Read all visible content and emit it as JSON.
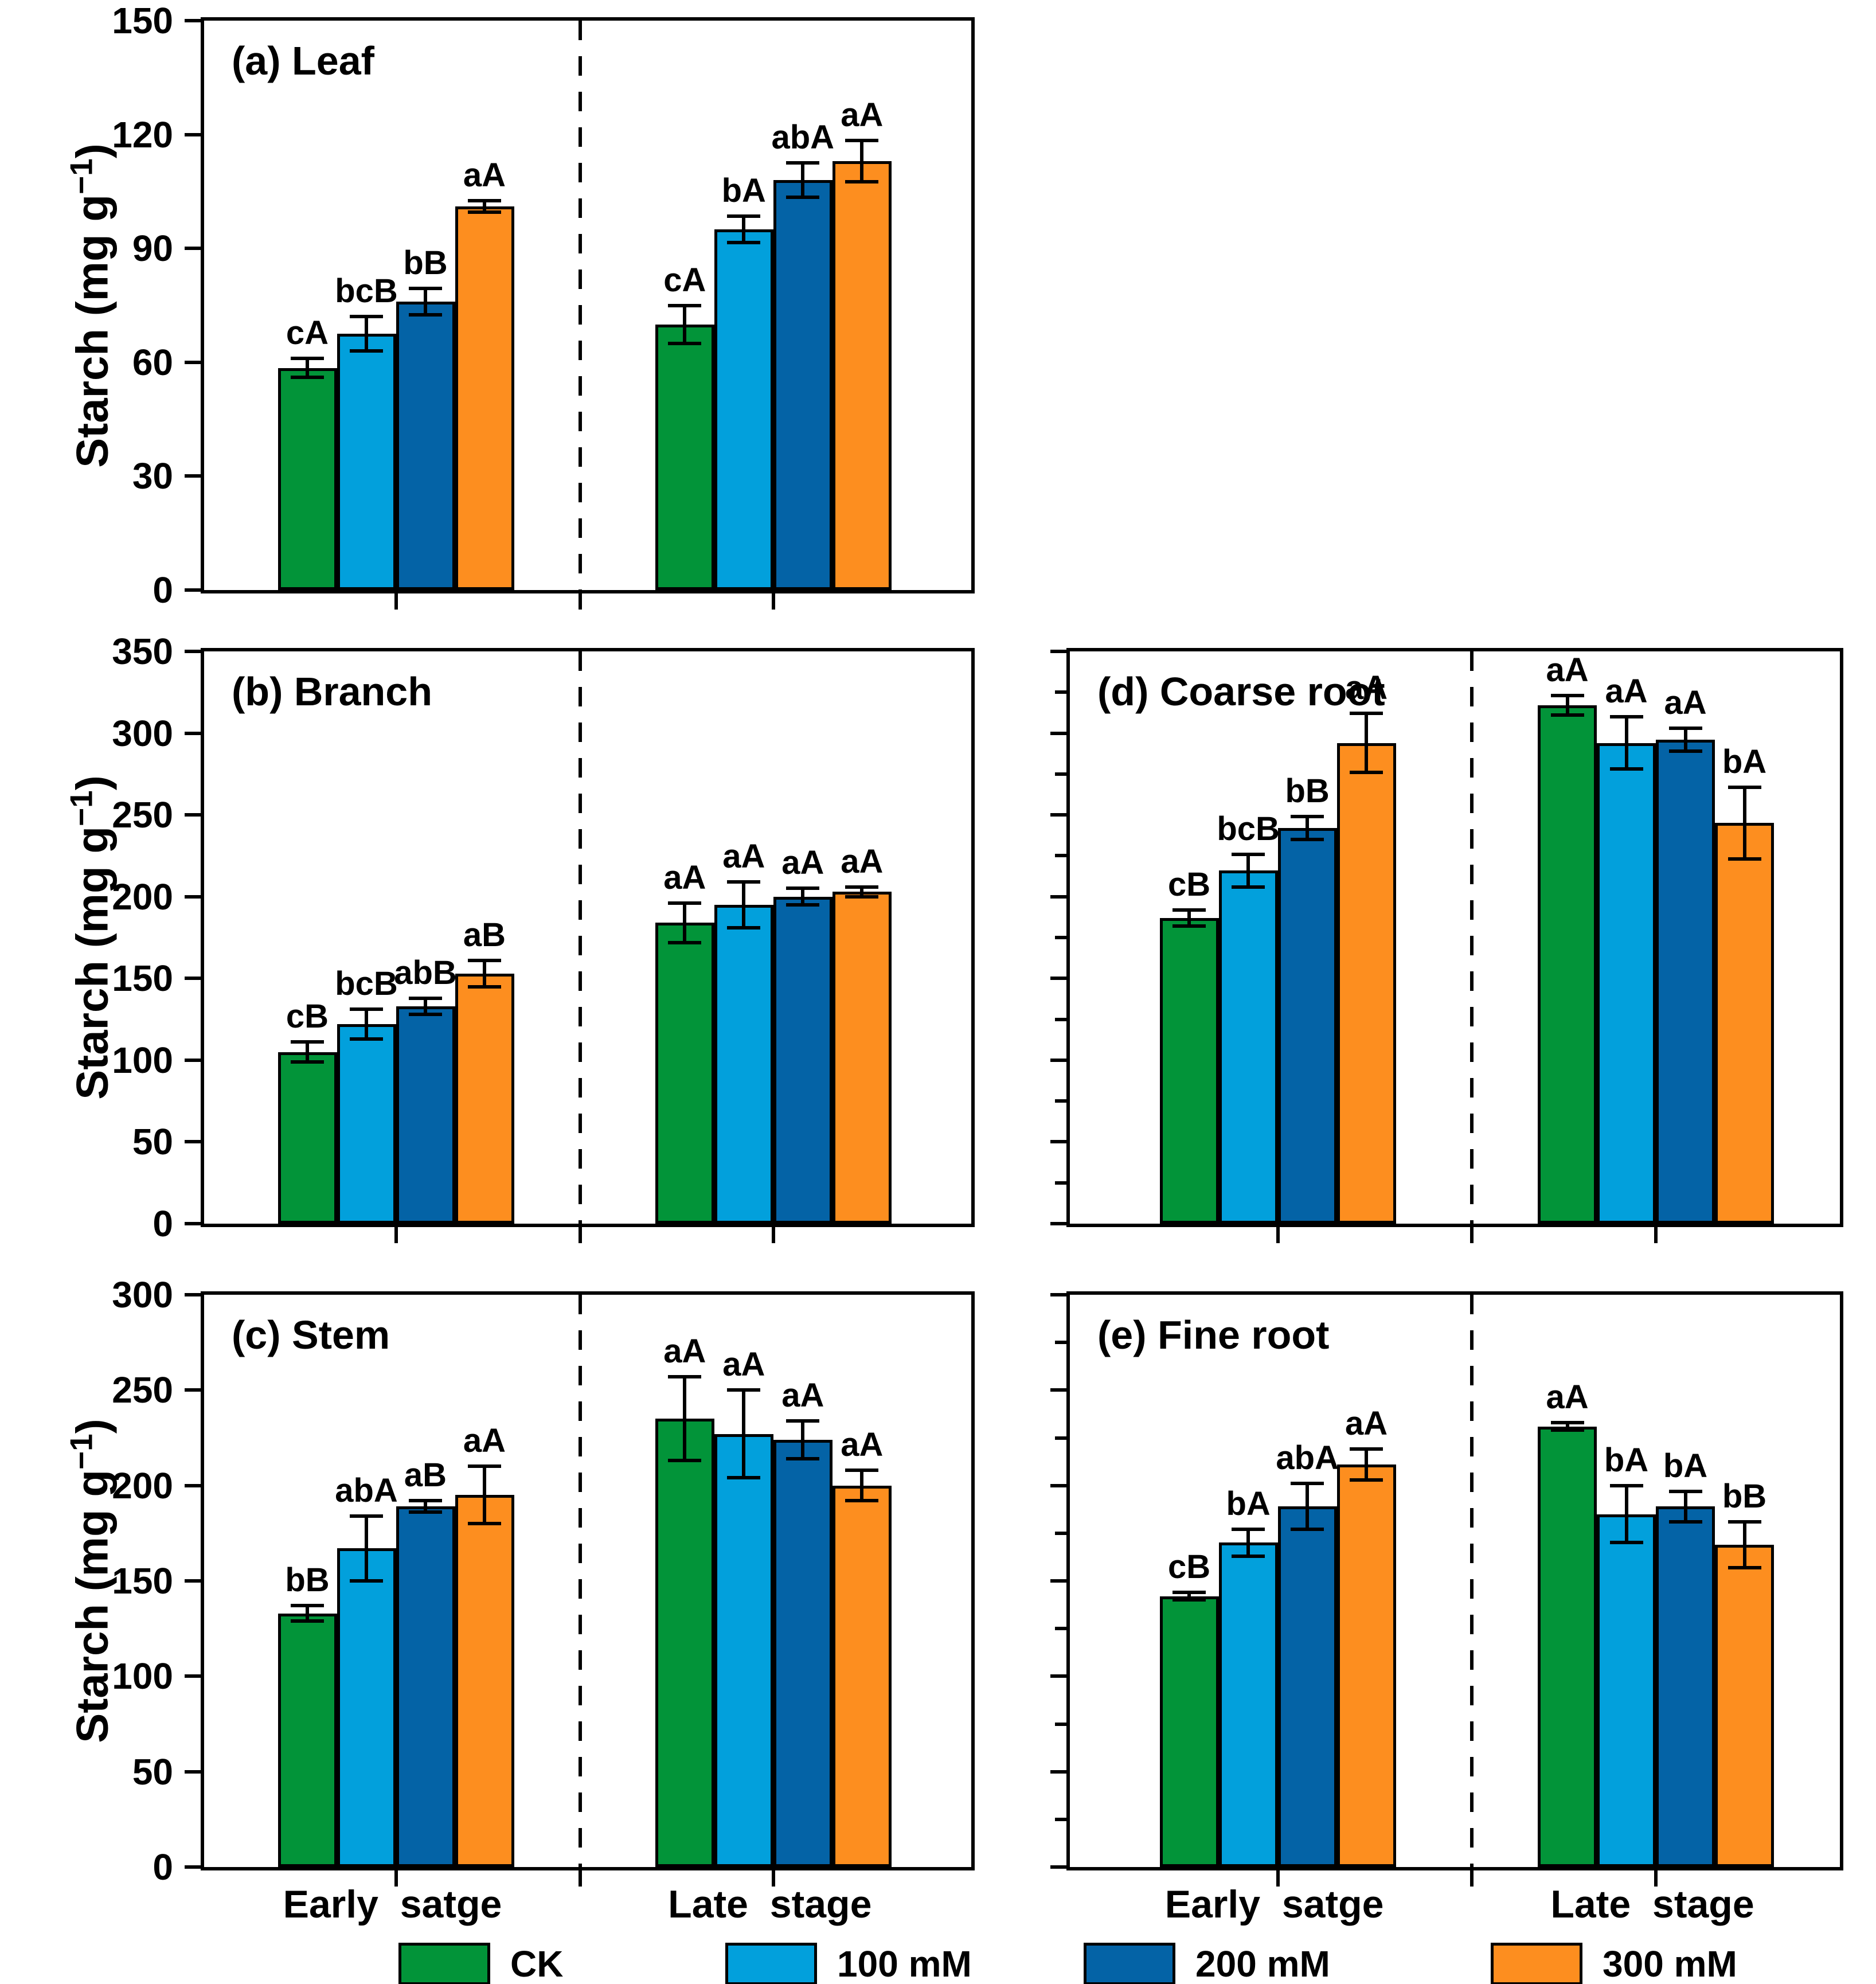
{
  "figure": {
    "y_axis_title": {
      "prefix": "Starch (mg g",
      "superscript": "−1",
      "suffix": ")"
    },
    "x_group_labels": [
      "Early  satge",
      "Late  stage"
    ],
    "legend": [
      {
        "label": "CK",
        "color": "#029439"
      },
      {
        "label": "100 mM",
        "color": "#02A0DC"
      },
      {
        "label": "200 mM",
        "color": "#0463A6"
      },
      {
        "label": "300 mM",
        "color": "#FD8E1F"
      }
    ],
    "colors": {
      "ck": "#029439",
      "mM100": "#02A0DC",
      "mM200": "#0463A6",
      "mM300": "#FD8E1F",
      "axis": "#000000",
      "background": "#ffffff"
    }
  },
  "chart_data": [
    {
      "id": "a",
      "type": "bar",
      "title": "(a) Leaf",
      "ylabel": "Starch (mg g-1)",
      "ylim": [
        0,
        150
      ],
      "yticks": [
        0,
        30,
        60,
        90,
        120,
        150
      ],
      "show_ytick_labels": true,
      "categories": [
        "Early  satge",
        "Late  stage"
      ],
      "series": [
        {
          "name": "CK",
          "color": "#029439",
          "values": [
            58.5,
            70
          ],
          "errors": [
            2.5,
            5
          ],
          "letters": [
            "cA",
            "cA"
          ]
        },
        {
          "name": "100 mM",
          "color": "#02A0DC",
          "values": [
            67.5,
            95
          ],
          "errors": [
            4.5,
            3.5
          ],
          "letters": [
            "bcB",
            "bA"
          ]
        },
        {
          "name": "200 mM",
          "color": "#0463A6",
          "values": [
            76,
            108
          ],
          "errors": [
            3.5,
            4.5
          ],
          "letters": [
            "bB",
            "abA"
          ]
        },
        {
          "name": "300 mM",
          "color": "#FD8E1F",
          "values": [
            101,
            113
          ],
          "errors": [
            1.5,
            5.5
          ],
          "letters": [
            "aA",
            "aA"
          ]
        }
      ]
    },
    {
      "id": "b",
      "type": "bar",
      "title": "(b) Branch",
      "ylabel": "Starch (mg g-1)",
      "ylim": [
        0,
        350
      ],
      "yticks": [
        0,
        50,
        100,
        150,
        200,
        250,
        300,
        350
      ],
      "show_ytick_labels": true,
      "categories": [
        "Early  satge",
        "Late  stage"
      ],
      "series": [
        {
          "name": "CK",
          "color": "#029439",
          "values": [
            105,
            184
          ],
          "errors": [
            6,
            12
          ],
          "letters": [
            "cB",
            "aA"
          ]
        },
        {
          "name": "100 mM",
          "color": "#02A0DC",
          "values": [
            122,
            195
          ],
          "errors": [
            9,
            14
          ],
          "letters": [
            "bcB",
            "aA"
          ]
        },
        {
          "name": "200 mM",
          "color": "#0463A6",
          "values": [
            133,
            200
          ],
          "errors": [
            5,
            5
          ],
          "letters": [
            "abB",
            "aA"
          ]
        },
        {
          "name": "300 mM",
          "color": "#FD8E1F",
          "values": [
            153,
            203
          ],
          "errors": [
            8,
            3
          ],
          "letters": [
            "aB",
            "aA"
          ]
        }
      ]
    },
    {
      "id": "c",
      "type": "bar",
      "title": "(c) Stem",
      "ylabel": "Starch (mg g-1)",
      "ylim": [
        0,
        300
      ],
      "yticks": [
        0,
        50,
        100,
        150,
        200,
        250,
        300
      ],
      "show_ytick_labels": true,
      "categories": [
        "Early  satge",
        "Late  stage"
      ],
      "series": [
        {
          "name": "CK",
          "color": "#029439",
          "values": [
            133,
            235
          ],
          "errors": [
            4,
            22
          ],
          "letters": [
            "bB",
            "aA"
          ]
        },
        {
          "name": "100 mM",
          "color": "#02A0DC",
          "values": [
            167,
            227
          ],
          "errors": [
            17,
            23
          ],
          "letters": [
            "abA",
            "aA"
          ]
        },
        {
          "name": "200 mM",
          "color": "#0463A6",
          "values": [
            189,
            224
          ],
          "errors": [
            3,
            10
          ],
          "letters": [
            "aB",
            "aA"
          ]
        },
        {
          "name": "300 mM",
          "color": "#FD8E1F",
          "values": [
            195,
            200
          ],
          "errors": [
            15,
            8
          ],
          "letters": [
            "aA",
            "aA"
          ]
        }
      ]
    },
    {
      "id": "d",
      "type": "bar",
      "title": "(d) Coarse root",
      "ylabel": "Starch (mg g-1)",
      "ylim": [
        0,
        350
      ],
      "yticks": [
        0,
        50,
        100,
        150,
        200,
        250,
        300,
        350
      ],
      "ytick_minor_step": 25,
      "show_ytick_labels": false,
      "categories": [
        "Early  satge",
        "Late  stage"
      ],
      "series": [
        {
          "name": "CK",
          "color": "#029439",
          "values": [
            187,
            317
          ],
          "errors": [
            5,
            6
          ],
          "letters": [
            "cB",
            "aA"
          ]
        },
        {
          "name": "100 mM",
          "color": "#02A0DC",
          "values": [
            216,
            294
          ],
          "errors": [
            10,
            16
          ],
          "letters": [
            "bcB",
            "aA"
          ]
        },
        {
          "name": "200 mM",
          "color": "#0463A6",
          "values": [
            242,
            296
          ],
          "errors": [
            7,
            7
          ],
          "letters": [
            "bB",
            "aA"
          ]
        },
        {
          "name": "300 mM",
          "color": "#FD8E1F",
          "values": [
            294,
            245
          ],
          "errors": [
            18,
            22
          ],
          "letters": [
            "aA",
            "bA"
          ]
        }
      ]
    },
    {
      "id": "e",
      "type": "bar",
      "title": "(e) Fine root",
      "ylabel": "Starch (mg g-1)",
      "ylim": [
        0,
        300
      ],
      "yticks": [
        0,
        50,
        100,
        150,
        200,
        250,
        300
      ],
      "ytick_minor_step": 25,
      "show_ytick_labels": false,
      "categories": [
        "Early  satge",
        "Late  stage"
      ],
      "series": [
        {
          "name": "CK",
          "color": "#029439",
          "values": [
            142,
            231
          ],
          "errors": [
            2,
            2
          ],
          "letters": [
            "cB",
            "aA"
          ]
        },
        {
          "name": "100 mM",
          "color": "#02A0DC",
          "values": [
            170,
            185
          ],
          "errors": [
            7,
            15
          ],
          "letters": [
            "bA",
            "bA"
          ]
        },
        {
          "name": "200 mM",
          "color": "#0463A6",
          "values": [
            189,
            189
          ],
          "errors": [
            12,
            8
          ],
          "letters": [
            "abA",
            "bA"
          ]
        },
        {
          "name": "300 mM",
          "color": "#FD8E1F",
          "values": [
            211,
            169
          ],
          "errors": [
            8,
            12
          ],
          "letters": [
            "aA",
            "bB"
          ]
        }
      ]
    }
  ]
}
